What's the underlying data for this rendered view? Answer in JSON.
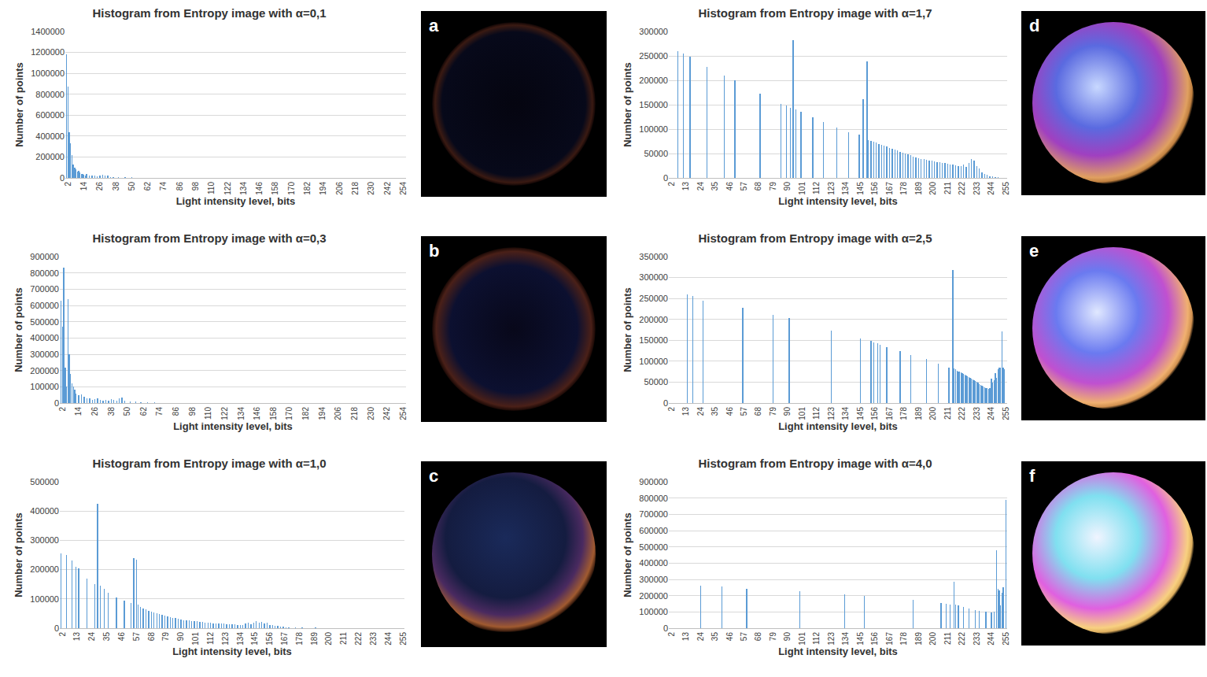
{
  "chart_data": [
    {
      "type": "bar",
      "panel_label": "a",
      "title": "Histogram from Entropy image with α=0,1",
      "x_label": "Light intensity level, bits",
      "y_label": "Number of points",
      "color": "#5b9bd5",
      "grid": true,
      "x": [
        1,
        2,
        3,
        4,
        5,
        6,
        7,
        8,
        9,
        10,
        11,
        12,
        13,
        14,
        15,
        16,
        18,
        20,
        22,
        24,
        26,
        28,
        30,
        32,
        34,
        36,
        40,
        45,
        50
      ],
      "values": [
        1180000,
        870000,
        440000,
        330000,
        220000,
        130000,
        100000,
        80000,
        60000,
        70000,
        50000,
        40000,
        35000,
        30000,
        25000,
        35000,
        25000,
        20000,
        20000,
        15000,
        25000,
        30000,
        25000,
        20000,
        10000,
        10000,
        8000,
        5000,
        4000
      ],
      "xlim": [
        0,
        256
      ],
      "xticks": [
        2,
        14,
        26,
        38,
        50,
        62,
        74,
        86,
        98,
        110,
        122,
        134,
        146,
        158,
        170,
        182,
        194,
        206,
        218,
        230,
        242,
        254
      ],
      "ylim": [
        0,
        1400000
      ],
      "yticks": [
        0,
        200000,
        400000,
        600000,
        800000,
        1000000,
        1200000,
        1400000
      ]
    },
    {
      "type": "bar",
      "panel_label": "b",
      "title": "Histogram from Entropy image with α=0,3",
      "x_label": "Light intensity level, bits",
      "y_label": "Number of points",
      "color": "#5b9bd5",
      "grid": true,
      "x": [
        1,
        2,
        3,
        4,
        5,
        6,
        7,
        8,
        9,
        10,
        11,
        12,
        14,
        16,
        18,
        20,
        22,
        24,
        26,
        28,
        30,
        32,
        34,
        36,
        38,
        40,
        42,
        44,
        46,
        48,
        52,
        56,
        60,
        65,
        70
      ],
      "values": [
        630000,
        470000,
        830000,
        220000,
        100000,
        640000,
        300000,
        180000,
        120000,
        100000,
        80000,
        60000,
        50000,
        55000,
        40000,
        30000,
        30000,
        20000,
        25000,
        30000,
        20000,
        15000,
        20000,
        15000,
        25000,
        20000,
        15000,
        30000,
        35000,
        15000,
        10000,
        8000,
        6000,
        4000,
        3000
      ],
      "xlim": [
        0,
        256
      ],
      "xticks": [
        2,
        14,
        26,
        38,
        50,
        62,
        74,
        86,
        98,
        110,
        122,
        134,
        146,
        158,
        170,
        182,
        194,
        206,
        218,
        230,
        242,
        254
      ],
      "ylim": [
        0,
        900000
      ],
      "yticks": [
        0,
        100000,
        200000,
        300000,
        400000,
        500000,
        600000,
        700000,
        800000,
        900000
      ]
    },
    {
      "type": "bar",
      "panel_label": "c",
      "title": "Histogram from Entropy image with α=1,0",
      "x_label": "Light intensity level, bits",
      "y_label": "Number of points",
      "color": "#5b9bd5",
      "grid": true,
      "x": [
        1,
        5,
        9,
        12,
        14,
        20,
        26,
        28,
        30,
        33,
        36,
        42,
        48,
        53,
        55,
        57,
        58,
        60,
        62,
        64,
        66,
        68,
        70,
        72,
        74,
        76,
        78,
        80,
        82,
        84,
        86,
        88,
        90,
        92,
        94,
        96,
        98,
        100,
        102,
        104,
        106,
        108,
        110,
        112,
        114,
        116,
        118,
        120,
        122,
        124,
        126,
        128,
        130,
        132,
        134,
        136,
        138,
        140,
        142,
        144,
        146,
        148,
        150,
        152,
        154,
        156,
        158,
        160,
        162,
        164,
        166,
        168,
        170,
        175,
        180,
        190,
        200,
        210,
        220,
        230,
        240,
        250
      ],
      "values": [
        255000,
        250000,
        230000,
        210000,
        205000,
        170000,
        150000,
        425000,
        145000,
        135000,
        120000,
        105000,
        95000,
        85000,
        240000,
        235000,
        80000,
        72000,
        68000,
        64000,
        60000,
        57000,
        54000,
        51000,
        48000,
        45000,
        42000,
        40000,
        38000,
        36000,
        34000,
        32000,
        30000,
        28000,
        27000,
        26000,
        25000,
        24000,
        23000,
        22000,
        21000,
        20000,
        19000,
        18000,
        17000,
        17000,
        16000,
        15000,
        15000,
        14000,
        14000,
        13000,
        13000,
        12000,
        12000,
        11000,
        15000,
        18000,
        14000,
        20000,
        25000,
        18000,
        22000,
        15000,
        20000,
        12000,
        10000,
        8000,
        7000,
        6000,
        5000,
        4000,
        3000,
        2500,
        2000,
        1500,
        1000,
        800,
        600,
        500,
        400,
        300
      ],
      "xlim": [
        0,
        256
      ],
      "xticks": [
        2,
        13,
        24,
        35,
        46,
        57,
        68,
        79,
        90,
        101,
        112,
        123,
        134,
        145,
        156,
        167,
        178,
        189,
        200,
        211,
        222,
        233,
        244,
        255
      ],
      "ylim": [
        0,
        500000
      ],
      "yticks": [
        0,
        100000,
        200000,
        300000,
        400000,
        500000
      ]
    },
    {
      "type": "bar",
      "panel_label": "d",
      "title": "Histogram from Entropy image with α=1,7",
      "x_label": "Light intensity level, bits",
      "y_label": "Number of points",
      "color": "#5b9bd5",
      "grid": true,
      "x": [
        7,
        11,
        16,
        29,
        42,
        50,
        69,
        85,
        89,
        92,
        94,
        96,
        100,
        109,
        117,
        127,
        136,
        144,
        147,
        150,
        151,
        153,
        155,
        157,
        159,
        161,
        163,
        165,
        167,
        169,
        171,
        173,
        175,
        177,
        179,
        181,
        183,
        185,
        187,
        189,
        191,
        193,
        195,
        197,
        199,
        201,
        203,
        205,
        207,
        209,
        211,
        213,
        215,
        217,
        219,
        221,
        223,
        225,
        227,
        229,
        231,
        233,
        235,
        237,
        239,
        241,
        243,
        245,
        247,
        249
      ],
      "values": [
        260000,
        255000,
        248000,
        228000,
        210000,
        200000,
        172000,
        152000,
        148000,
        143000,
        283000,
        140000,
        135000,
        125000,
        115000,
        103000,
        93000,
        88000,
        162000,
        238000,
        78000,
        76000,
        74000,
        72000,
        70000,
        68000,
        66000,
        64000,
        62000,
        60000,
        58000,
        56000,
        54000,
        52000,
        50000,
        48000,
        46000,
        44000,
        42000,
        40000,
        39000,
        38000,
        37000,
        36000,
        35000,
        34000,
        33000,
        32000,
        31000,
        30000,
        29000,
        28000,
        27000,
        26000,
        25000,
        24000,
        28000,
        23000,
        30000,
        38000,
        36000,
        25000,
        20000,
        12000,
        8000,
        6000,
        4000,
        3000,
        2000,
        1500
      ],
      "xlim": [
        0,
        256
      ],
      "xticks": [
        2,
        13,
        24,
        35,
        46,
        57,
        68,
        79,
        90,
        101,
        112,
        123,
        134,
        145,
        156,
        167,
        178,
        189,
        200,
        211,
        222,
        233,
        244,
        255
      ],
      "ylim": [
        0,
        300000
      ],
      "yticks": [
        0,
        50000,
        100000,
        150000,
        200000,
        250000,
        300000
      ]
    },
    {
      "type": "bar",
      "panel_label": "e",
      "title": "Histogram from Entropy image with α=2,5",
      "x_label": "Light intensity level, bits",
      "y_label": "Number of points",
      "color": "#5b9bd5",
      "grid": true,
      "x": [
        14,
        18,
        26,
        56,
        79,
        91,
        123,
        145,
        153,
        155,
        158,
        160,
        165,
        175,
        183,
        195,
        204,
        212,
        215,
        216,
        217,
        218,
        219,
        220,
        221,
        222,
        223,
        224,
        225,
        226,
        227,
        228,
        229,
        230,
        231,
        232,
        233,
        234,
        235,
        236,
        237,
        238,
        239,
        240,
        241,
        242,
        243,
        244,
        245,
        246,
        247,
        248,
        249,
        250,
        251,
        252,
        253,
        254
      ],
      "values": [
        260000,
        255000,
        245000,
        228000,
        210000,
        203000,
        173000,
        155000,
        148000,
        145000,
        143000,
        140000,
        133000,
        125000,
        115000,
        105000,
        95000,
        85000,
        318000,
        82000,
        80000,
        78000,
        76000,
        75000,
        73000,
        71000,
        70000,
        68000,
        66000,
        64000,
        62000,
        60000,
        58000,
        56000,
        54000,
        52000,
        50000,
        48000,
        46000,
        44000,
        42000,
        40000,
        38000,
        36000,
        35000,
        34000,
        36000,
        58000,
        48000,
        55000,
        72000,
        60000,
        80000,
        85000,
        85000,
        172000,
        85000,
        80000
      ],
      "xlim": [
        0,
        256
      ],
      "xticks": [
        2,
        13,
        24,
        35,
        46,
        57,
        68,
        79,
        90,
        101,
        112,
        123,
        134,
        145,
        156,
        167,
        178,
        189,
        200,
        211,
        222,
        233,
        244,
        255
      ],
      "ylim": [
        0,
        350000
      ],
      "yticks": [
        0,
        50000,
        100000,
        150000,
        200000,
        250000,
        300000,
        350000
      ]
    },
    {
      "type": "bar",
      "panel_label": "f",
      "title": "Histogram from Entropy image with α=4,0",
      "x_label": "Light intensity level, bits",
      "y_label": "Number of points",
      "color": "#5b9bd5",
      "grid": true,
      "x": [
        24,
        40,
        59,
        99,
        133,
        148,
        185,
        206,
        210,
        213,
        216,
        217,
        219,
        223,
        227,
        232,
        235,
        240,
        244,
        246,
        248,
        249,
        250,
        251,
        252,
        253,
        255
      ],
      "values": [
        260000,
        255000,
        243000,
        228000,
        210000,
        200000,
        175000,
        155000,
        150000,
        145000,
        285000,
        145000,
        140000,
        130000,
        120000,
        110000,
        105000,
        100000,
        95000,
        100000,
        480000,
        240000,
        230000,
        140000,
        220000,
        250000,
        790000
      ],
      "xlim": [
        0,
        256
      ],
      "xticks": [
        2,
        13,
        24,
        35,
        46,
        57,
        68,
        79,
        90,
        101,
        112,
        123,
        134,
        145,
        156,
        167,
        178,
        189,
        200,
        211,
        222,
        233,
        244,
        255
      ],
      "ylim": [
        0,
        900000
      ],
      "yticks": [
        0,
        100000,
        200000,
        300000,
        400000,
        500000,
        600000,
        700000,
        800000,
        900000
      ]
    }
  ]
}
